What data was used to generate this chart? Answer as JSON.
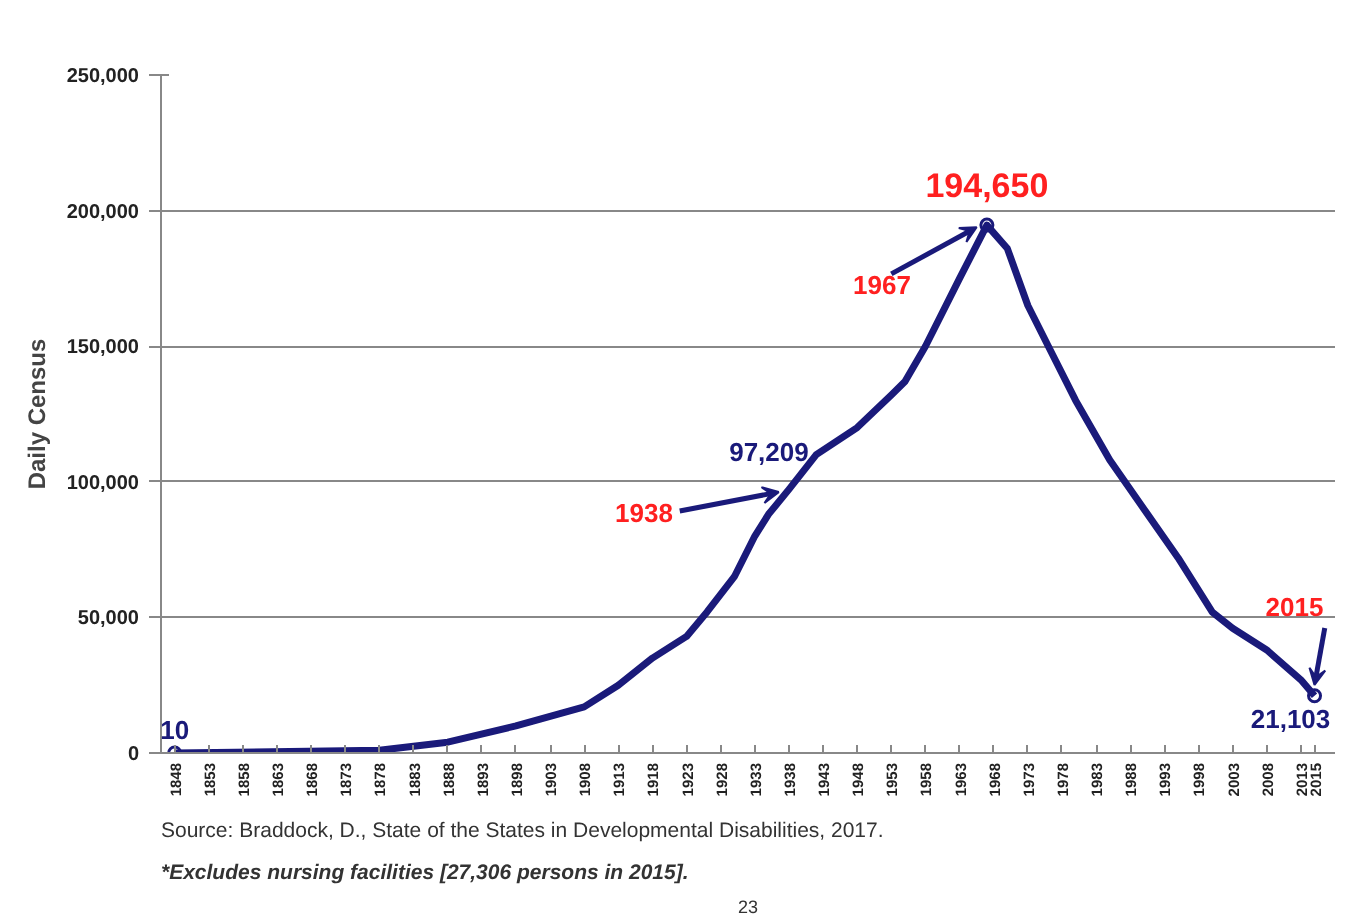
{
  "chart_data": {
    "type": "line",
    "ylabel": "Daily Census",
    "x": [
      1848,
      1878,
      1888,
      1898,
      1908,
      1913,
      1918,
      1923,
      1926,
      1930,
      1933,
      1935,
      1938,
      1942,
      1948,
      1953,
      1955,
      1958,
      1963,
      1967,
      1970,
      1973,
      1976,
      1980,
      1985,
      1990,
      1995,
      2000,
      2003,
      2008,
      2013,
      2015
    ],
    "series": [
      {
        "color": "#1a1a7a",
        "values": [
          10,
          1000,
          4000,
          10000,
          17000,
          25000,
          35000,
          43000,
          52000,
          65000,
          80000,
          88000,
          97209,
          110000,
          120000,
          132000,
          137000,
          150000,
          175000,
          194650,
          186000,
          165000,
          150000,
          130000,
          108000,
          90000,
          72000,
          52000,
          46000,
          38000,
          27000,
          21103
        ]
      }
    ],
    "xlim": [
      1846,
      2018
    ],
    "xticks": [
      1848,
      1853,
      1858,
      1863,
      1868,
      1873,
      1878,
      1883,
      1888,
      1893,
      1898,
      1903,
      1908,
      1913,
      1918,
      1923,
      1928,
      1933,
      1938,
      1943,
      1948,
      1953,
      1958,
      1963,
      1968,
      1973,
      1978,
      1983,
      1988,
      1993,
      1998,
      2003,
      2008,
      2013,
      2015
    ],
    "ylim": [
      0,
      250000
    ],
    "yticks": [
      {
        "value": 0,
        "label": "0"
      },
      {
        "value": 50000,
        "label": "50,000"
      },
      {
        "value": 100000,
        "label": "100,000"
      },
      {
        "value": 150000,
        "label": "150,000"
      },
      {
        "value": 200000,
        "label": "200,000"
      },
      {
        "value": 250000,
        "label": "250,000"
      }
    ],
    "grid": "y",
    "marker": "none",
    "line_style": "solid",
    "annotations": [
      {
        "text": "10",
        "x": 1848,
        "y": 10
      },
      {
        "text": "1938",
        "x": 1938,
        "y": 97209
      },
      {
        "text": "97,209",
        "x": 1938,
        "y": 97209
      },
      {
        "text": "1967",
        "x": 1967,
        "y": 194650
      },
      {
        "text": "194,650",
        "x": 1967,
        "y": 194650
      },
      {
        "text": "2015",
        "x": 2015,
        "y": 21103
      },
      {
        "text": "21,103",
        "x": 2015,
        "y": 21103
      },
      "Source: Braddock, D., State of the States in Developmental Disabilities, 2017.",
      "*Excludes nursing facilities  [27,306 persons in 2015].",
      "23"
    ]
  }
}
